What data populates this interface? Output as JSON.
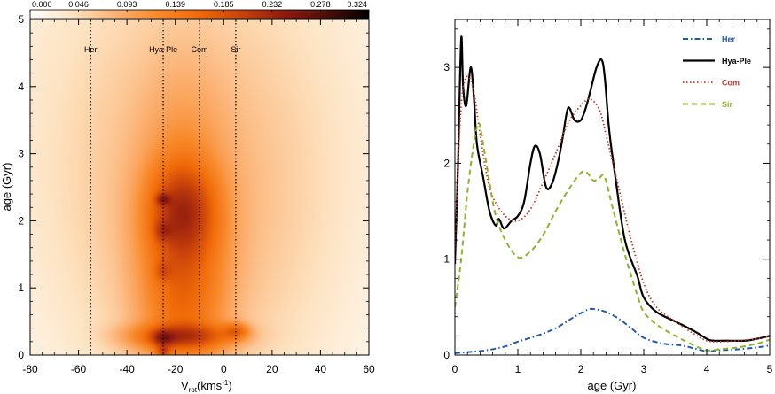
{
  "chart_data": [
    {
      "type": "heatmap",
      "xlabel_main": "V",
      "xlabel_sub": "rot",
      "xlabel_unit": "(kms",
      "xlabel_exp": "-1",
      "xlabel_close": ")",
      "ylabel": "age (Gyr)",
      "xlim": [
        -80,
        60
      ],
      "ylim": [
        0,
        5
      ],
      "xticks": [
        -80,
        -60,
        -40,
        -20,
        0,
        20,
        40,
        60
      ],
      "yticks": [
        0,
        1,
        2,
        3,
        4,
        5
      ],
      "colorbar": {
        "ticks": [
          "0.000",
          "0.046",
          "0.093",
          "0.139",
          "0.185",
          "0.232",
          "0.278",
          "0.324"
        ],
        "range": [
          0,
          0.324
        ],
        "colors": [
          "#ffffff",
          "#fde3c2",
          "#fbb274",
          "#f88a2c",
          "#f06a08",
          "#c8410a",
          "#8f1a0f",
          "#4a0f0a",
          "#000000"
        ]
      },
      "vlines": [
        {
          "name": "Her",
          "x": -55
        },
        {
          "name": "Hya-Ple",
          "x": -25
        },
        {
          "name": "Com",
          "x": -10
        },
        {
          "name": "Sir",
          "x": 5
        }
      ],
      "blobs": [
        {
          "x": -17,
          "y": 2.15,
          "sx": 9,
          "sy": 0.45,
          "w": 0.16
        },
        {
          "x": -17,
          "y": 1.7,
          "sx": 11,
          "sy": 1.3,
          "w": 0.07
        },
        {
          "x": -17,
          "y": 0.28,
          "sx": 13,
          "sy": 0.12,
          "w": 0.16
        },
        {
          "x": -17,
          "y": 0.9,
          "sx": 11,
          "sy": 0.8,
          "w": 0.06
        },
        {
          "x": -25,
          "y": 2.32,
          "sx": 2,
          "sy": 0.06,
          "w": 0.14
        },
        {
          "x": -25,
          "y": 1.85,
          "sx": 2.5,
          "sy": 0.1,
          "w": 0.08
        },
        {
          "x": -25,
          "y": 1.25,
          "sx": 2.5,
          "sy": 0.1,
          "w": 0.06
        },
        {
          "x": -25,
          "y": 0.25,
          "sx": 3,
          "sy": 0.08,
          "w": 0.14
        },
        {
          "x": -25,
          "y": 0.05,
          "sx": 2,
          "sy": 0.06,
          "w": 0.12
        },
        {
          "x": 5,
          "y": 0.35,
          "sx": 3.5,
          "sy": 0.08,
          "w": 0.1
        },
        {
          "x": -12,
          "y": 2.0,
          "sx": 30,
          "sy": 1.8,
          "w": 0.025
        },
        {
          "x": -15,
          "y": 3.5,
          "sx": 45,
          "sy": 2.0,
          "w": 0.012
        }
      ]
    },
    {
      "type": "line",
      "xlabel": "age (Gyr)",
      "ylabel": "",
      "xlim": [
        0,
        5
      ],
      "ylim": [
        0,
        3.5
      ],
      "xticks": [
        0,
        1,
        2,
        3,
        4,
        5
      ],
      "yticks": [
        0,
        1,
        2,
        3
      ],
      "legend_position": "top-right",
      "series": [
        {
          "name": "Her",
          "color": "#1e5bb0",
          "style": "dashdot",
          "legend_color": "#1e5bb0",
          "x": [
            0,
            0.2,
            0.5,
            0.8,
            1.0,
            1.3,
            1.6,
            1.9,
            2.1,
            2.2,
            2.4,
            2.6,
            2.8,
            3.0,
            3.3,
            3.6,
            3.8,
            4.0,
            4.2,
            4.5,
            4.8,
            5.0
          ],
          "y": [
            0.02,
            0.03,
            0.05,
            0.09,
            0.14,
            0.2,
            0.28,
            0.4,
            0.47,
            0.48,
            0.45,
            0.38,
            0.28,
            0.18,
            0.12,
            0.1,
            0.07,
            0.04,
            0.05,
            0.06,
            0.08,
            0.1
          ]
        },
        {
          "name": "Hya-Ple",
          "color": "#000000",
          "style": "solid",
          "legend_color": "#000000",
          "x": [
            0,
            0.05,
            0.1,
            0.13,
            0.18,
            0.25,
            0.3,
            0.35,
            0.45,
            0.55,
            0.65,
            0.7,
            0.78,
            0.9,
            1.0,
            1.1,
            1.2,
            1.27,
            1.35,
            1.45,
            1.55,
            1.65,
            1.72,
            1.8,
            1.9,
            2.0,
            2.08,
            2.15,
            2.25,
            2.33,
            2.38,
            2.45,
            2.55,
            2.7,
            2.9,
            3.0,
            3.2,
            3.5,
            3.8,
            4.0,
            4.1,
            4.3,
            4.6,
            4.8,
            5.0
          ],
          "y": [
            0.95,
            2.0,
            3.3,
            2.8,
            2.6,
            3.0,
            2.7,
            2.2,
            1.85,
            1.5,
            1.35,
            1.42,
            1.32,
            1.4,
            1.45,
            1.6,
            2.0,
            2.18,
            2.1,
            1.75,
            1.8,
            2.05,
            2.3,
            2.58,
            2.45,
            2.45,
            2.58,
            2.75,
            3.0,
            3.08,
            2.9,
            2.35,
            1.85,
            1.2,
            0.82,
            0.6,
            0.45,
            0.35,
            0.25,
            0.17,
            0.15,
            0.15,
            0.15,
            0.17,
            0.2
          ]
        },
        {
          "name": "Com",
          "color": "#c0392b",
          "style": "dotted",
          "legend_color": "#c0392b",
          "x": [
            0,
            0.05,
            0.1,
            0.15,
            0.22,
            0.3,
            0.4,
            0.5,
            0.6,
            0.8,
            1.0,
            1.2,
            1.4,
            1.6,
            1.8,
            2.0,
            2.15,
            2.3,
            2.4,
            2.6,
            2.8,
            3.0,
            3.2,
            3.5,
            3.8,
            4.0,
            4.2,
            4.5,
            4.8,
            5.0
          ],
          "y": [
            1.1,
            2.0,
            2.6,
            2.85,
            2.9,
            2.75,
            2.3,
            1.9,
            1.65,
            1.45,
            1.4,
            1.52,
            1.8,
            2.1,
            2.42,
            2.6,
            2.67,
            2.55,
            2.3,
            1.75,
            1.2,
            0.75,
            0.5,
            0.35,
            0.22,
            0.15,
            0.14,
            0.15,
            0.17,
            0.2
          ]
        },
        {
          "name": "Sir",
          "color": "#8db32a",
          "style": "dashed",
          "legend_color": "#8db32a",
          "x": [
            0,
            0.1,
            0.2,
            0.3,
            0.38,
            0.45,
            0.55,
            0.65,
            0.8,
            1.0,
            1.2,
            1.4,
            1.6,
            1.8,
            2.0,
            2.1,
            2.2,
            2.3,
            2.35,
            2.4,
            2.5,
            2.7,
            2.9,
            3.0,
            3.2,
            3.5,
            3.8,
            4.0,
            4.2,
            4.5,
            4.8,
            5.0
          ],
          "y": [
            0.5,
            1.0,
            1.7,
            2.2,
            2.42,
            2.2,
            1.8,
            1.45,
            1.2,
            1.02,
            1.08,
            1.25,
            1.5,
            1.72,
            1.9,
            1.9,
            1.82,
            1.85,
            1.88,
            1.82,
            1.55,
            1.05,
            0.62,
            0.45,
            0.32,
            0.2,
            0.1,
            0.05,
            0.06,
            0.08,
            0.12,
            0.16
          ]
        }
      ]
    }
  ]
}
